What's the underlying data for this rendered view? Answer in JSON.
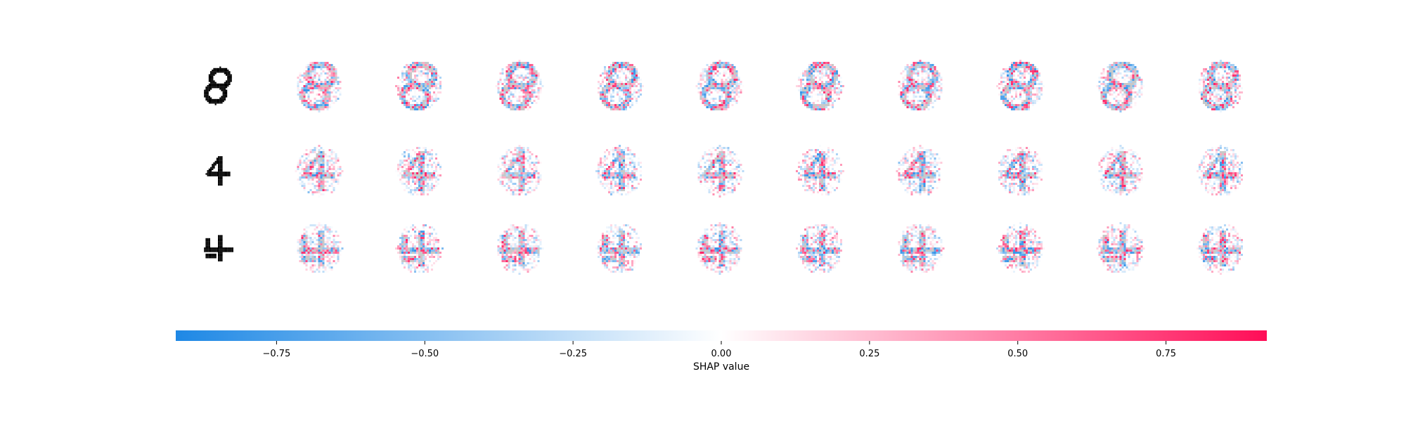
{
  "chart_data": {
    "type": "heatmap",
    "description_source": "SHAP image plot",
    "rows": [
      {
        "digit_shown": "8",
        "num_explanations": 10
      },
      {
        "digit_shown": "4",
        "num_explanations": 10
      },
      {
        "digit_shown": "4",
        "num_explanations": 10
      }
    ],
    "colorbar": {
      "label": "SHAP value",
      "range": [
        -0.92,
        0.92
      ],
      "ticks": [
        -0.75,
        -0.5,
        -0.25,
        0.0,
        0.25,
        0.5,
        0.75
      ],
      "tick_labels": [
        "−0.75",
        "−0.50",
        "−0.25",
        "0.00",
        "0.25",
        "0.50",
        "0.75"
      ],
      "colors": {
        "negative": "#1E88E5",
        "zero": "#FFFFFF",
        "positive": "#FF0D57"
      }
    },
    "xlabel": "SHAP value",
    "grid": false
  }
}
